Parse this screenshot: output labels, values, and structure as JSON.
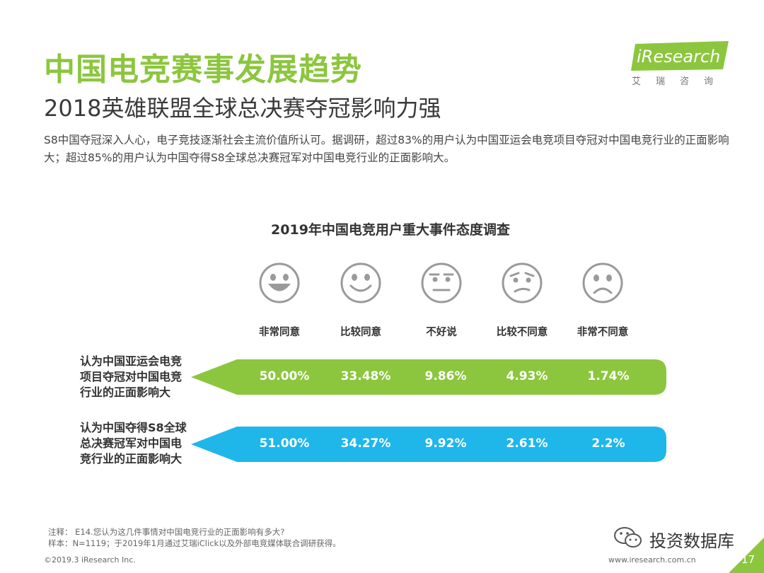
{
  "header": {
    "title": "中国电竞赛事发展趋势",
    "subtitle": "2018英雄联盟全球总决赛夺冠影响力强",
    "description": "S8中国夺冠深入人心，电子竞技逐渐社会主流价值所认可。据调研，超过83%的用户认为中国亚运会电竞项目夺冠对中国电竞行业的正面影响大；超过85%的用户认为中国夺得S8全球总决赛冠军对中国电竞行业的正面影响大。"
  },
  "logo": {
    "brand": "iResearch",
    "sub": "艾瑞咨询"
  },
  "colors": {
    "title_green": "#8cc63e",
    "bar_green": "#8cc63e",
    "bar_blue": "#1fb6ea",
    "face": "#9a9a9a"
  },
  "chart_data": {
    "type": "table",
    "title": "2019年中国电竞用户重大事件态度调查",
    "categories": [
      "非常同意",
      "比较同意",
      "不好说",
      "比较不同意",
      "非常不同意"
    ],
    "category_icons": [
      "very-happy-face-icon",
      "smile-face-icon",
      "neutral-face-icon",
      "worried-face-icon",
      "sad-face-icon"
    ],
    "series": [
      {
        "name": "认为中国亚运会电竞项目夺冠对中国电竞行业的正面影响大",
        "labels": [
          "50.00%",
          "33.48%",
          "9.86%",
          "4.93%",
          "1.74%"
        ],
        "values": [
          50.0,
          33.48,
          9.86,
          4.93,
          1.74
        ],
        "color": "#8cc63e"
      },
      {
        "name": "认为中国夺得S8全球总决赛冠军对中国电竞行业的正面影响大",
        "labels": [
          "51.00%",
          "34.27%",
          "9.92%",
          "2.61%",
          "2.2%"
        ],
        "values": [
          51.0,
          34.27,
          9.92,
          2.61,
          2.2
        ],
        "color": "#1fb6ea"
      }
    ]
  },
  "rows": [
    {
      "label_lines": [
        "认为中国亚运会电竞",
        "项目夺冠对中国电竞",
        "行业的正面影响大"
      ]
    },
    {
      "label_lines": [
        "认为中国夺得S8全球",
        "总决赛冠军对中国电",
        "竞行业的正面影响大"
      ]
    }
  ],
  "footer": {
    "note1": "注释：  E14.您认为这几件事情对中国电竞行业的正面影响有多大?",
    "note2": "样本：N=1119；于2019年1月通过艾瑞iClick以及外部电竞媒体联合调研获得。",
    "copyright": "©2019.3 iResearch Inc.",
    "website": "www.iresearch.com.cn",
    "watermark": "投资数据库",
    "page": "17"
  }
}
